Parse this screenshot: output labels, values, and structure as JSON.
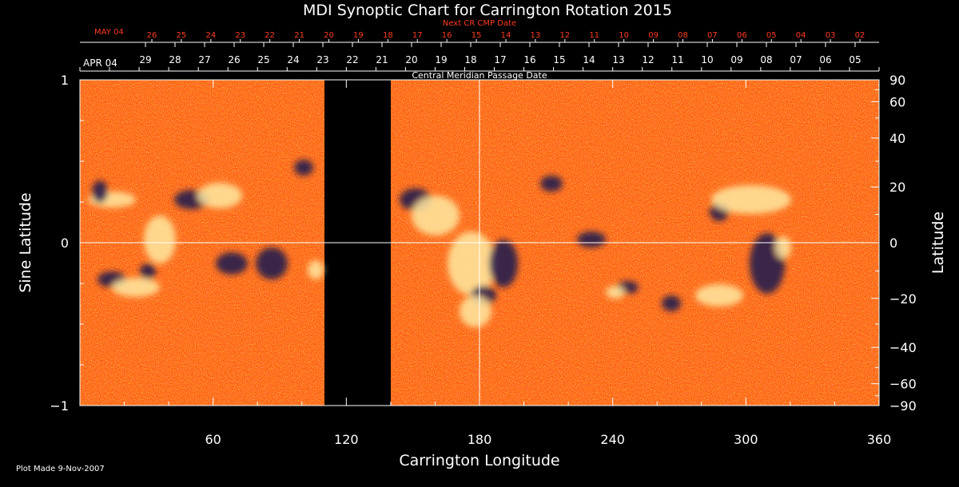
{
  "chart_data": {
    "type": "heatmap",
    "title": "MDI Synoptic Chart for Carrington Rotation 2015",
    "xlabel": "Carrington Longitude",
    "ylabel_left": "Sine Latitude",
    "ylabel_right": "Latitude",
    "xlim": [
      0,
      360
    ],
    "ylim": [
      -1,
      1
    ],
    "x_ticks": [
      60,
      120,
      180,
      240,
      300,
      360
    ],
    "y_ticks_left": [
      {
        "value": 1,
        "label": "1"
      },
      {
        "value": 0,
        "label": "0"
      },
      {
        "value": -1,
        "label": "−1"
      }
    ],
    "y_ticks_right": [
      {
        "lat": 90,
        "label": "90"
      },
      {
        "lat": 60,
        "label": "60"
      },
      {
        "lat": 40,
        "label": "40"
      },
      {
        "lat": 20,
        "label": "20"
      },
      {
        "lat": 0,
        "label": "0"
      },
      {
        "lat": -20,
        "label": "−20"
      },
      {
        "lat": -40,
        "label": "−40"
      },
      {
        "lat": -60,
        "label": "−60"
      },
      {
        "lat": -90,
        "label": "−90"
      }
    ],
    "data_gap_longitude": [
      110,
      140
    ],
    "crosshair": {
      "longitude": 180,
      "sine_latitude": 0
    },
    "cmp_axis_label": "Central Meridian Passage Date",
    "cmp_start_label": "APR 04",
    "cmp_dates": [
      "29",
      "28",
      "27",
      "26",
      "25",
      "24",
      "23",
      "22",
      "21",
      "20",
      "19",
      "18",
      "17",
      "16",
      "15",
      "14",
      "13",
      "12",
      "11",
      "10",
      "09",
      "08",
      "07",
      "06",
      "05"
    ],
    "next_cr_label": "Next CR CMP Date",
    "next_cr_start_label": "MAY 04",
    "next_cr_dates": [
      "26",
      "25",
      "24",
      "23",
      "22",
      "21",
      "20",
      "19",
      "18",
      "17",
      "16",
      "15",
      "14",
      "13",
      "12",
      "11",
      "10",
      "09",
      "08",
      "07",
      "06",
      "05",
      "04",
      "03",
      "02"
    ],
    "colors": {
      "background": "#ff5a10",
      "positive": "#ffe9a0",
      "negative": "#1a1450",
      "next_cr_text": "#ff3b1f"
    }
  },
  "footer": {
    "plot_made": "Plot Made  9-Nov-2007"
  }
}
